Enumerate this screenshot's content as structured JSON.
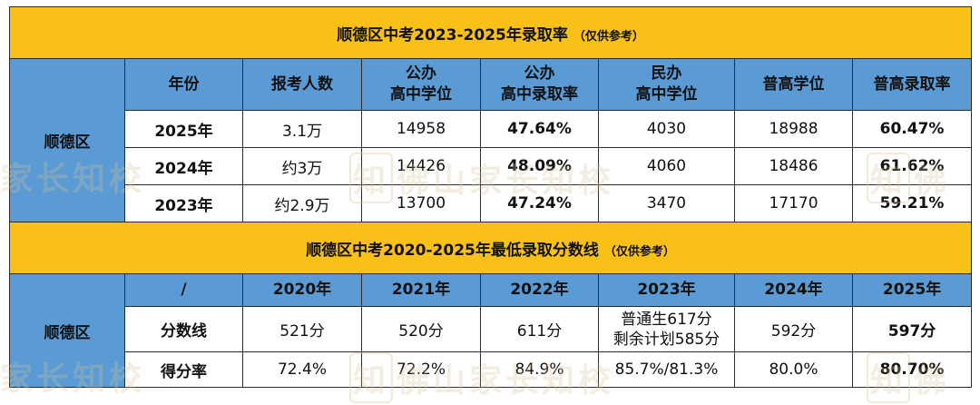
{
  "section1": {
    "title": "顺德区中考2023-2025年录取率",
    "note": "（仅供参考）",
    "headers": [
      "年份",
      "报考人数",
      "公办\n高中学位",
      "公办\n高中录取率",
      "民办\n高中学位",
      "普高学位",
      "普高录取率"
    ],
    "side_label": "顺德区",
    "rows": [
      {
        "year": "2025年",
        "applicants": "3.1万",
        "public_seats": "14958",
        "public_rate": "47.64%",
        "private_seats": "4030",
        "general_seats": "18988",
        "general_rate": "60.47%"
      },
      {
        "year": "2024年",
        "applicants": "约3万",
        "public_seats": "14426",
        "public_rate": "48.09%",
        "private_seats": "4060",
        "general_seats": "18486",
        "general_rate": "61.62%"
      },
      {
        "year": "2023年",
        "applicants": "约2.9万",
        "public_seats": "13700",
        "public_rate": "47.24%",
        "private_seats": "3470",
        "general_seats": "17170",
        "general_rate": "59.21%"
      }
    ]
  },
  "section2": {
    "title": "顺德区中考2020-2025年最低录取分数线",
    "note": "（仅供参考）",
    "headers": [
      "/",
      "2020年",
      "2021年",
      "2022年",
      "2023年",
      "2024年",
      "2025年"
    ],
    "side_label": "顺德区",
    "score_row": {
      "label": "分数线",
      "y2020": "521分",
      "y2021": "520分",
      "y2022": "611分",
      "y2023_line1": "普通生617分",
      "y2023_line2": "剩余计划585分",
      "y2024": "592分",
      "y2025": "597分"
    },
    "rate_row": {
      "label": "得分率",
      "y2020": "72.4%",
      "y2021": "72.2%",
      "y2022": "84.9%",
      "y2023": "85.7%/81.3%",
      "y2024": "80.0%",
      "y2025": "80.70%"
    }
  },
  "watermark": {
    "text_left": "家长知校",
    "text_center": "佛山家长知校",
    "text_right": "佛",
    "logo_char": "知"
  },
  "colors": {
    "title_bg": "#f9c117",
    "header_bg": "#5b9bd5",
    "highlight": "#e0282e"
  }
}
